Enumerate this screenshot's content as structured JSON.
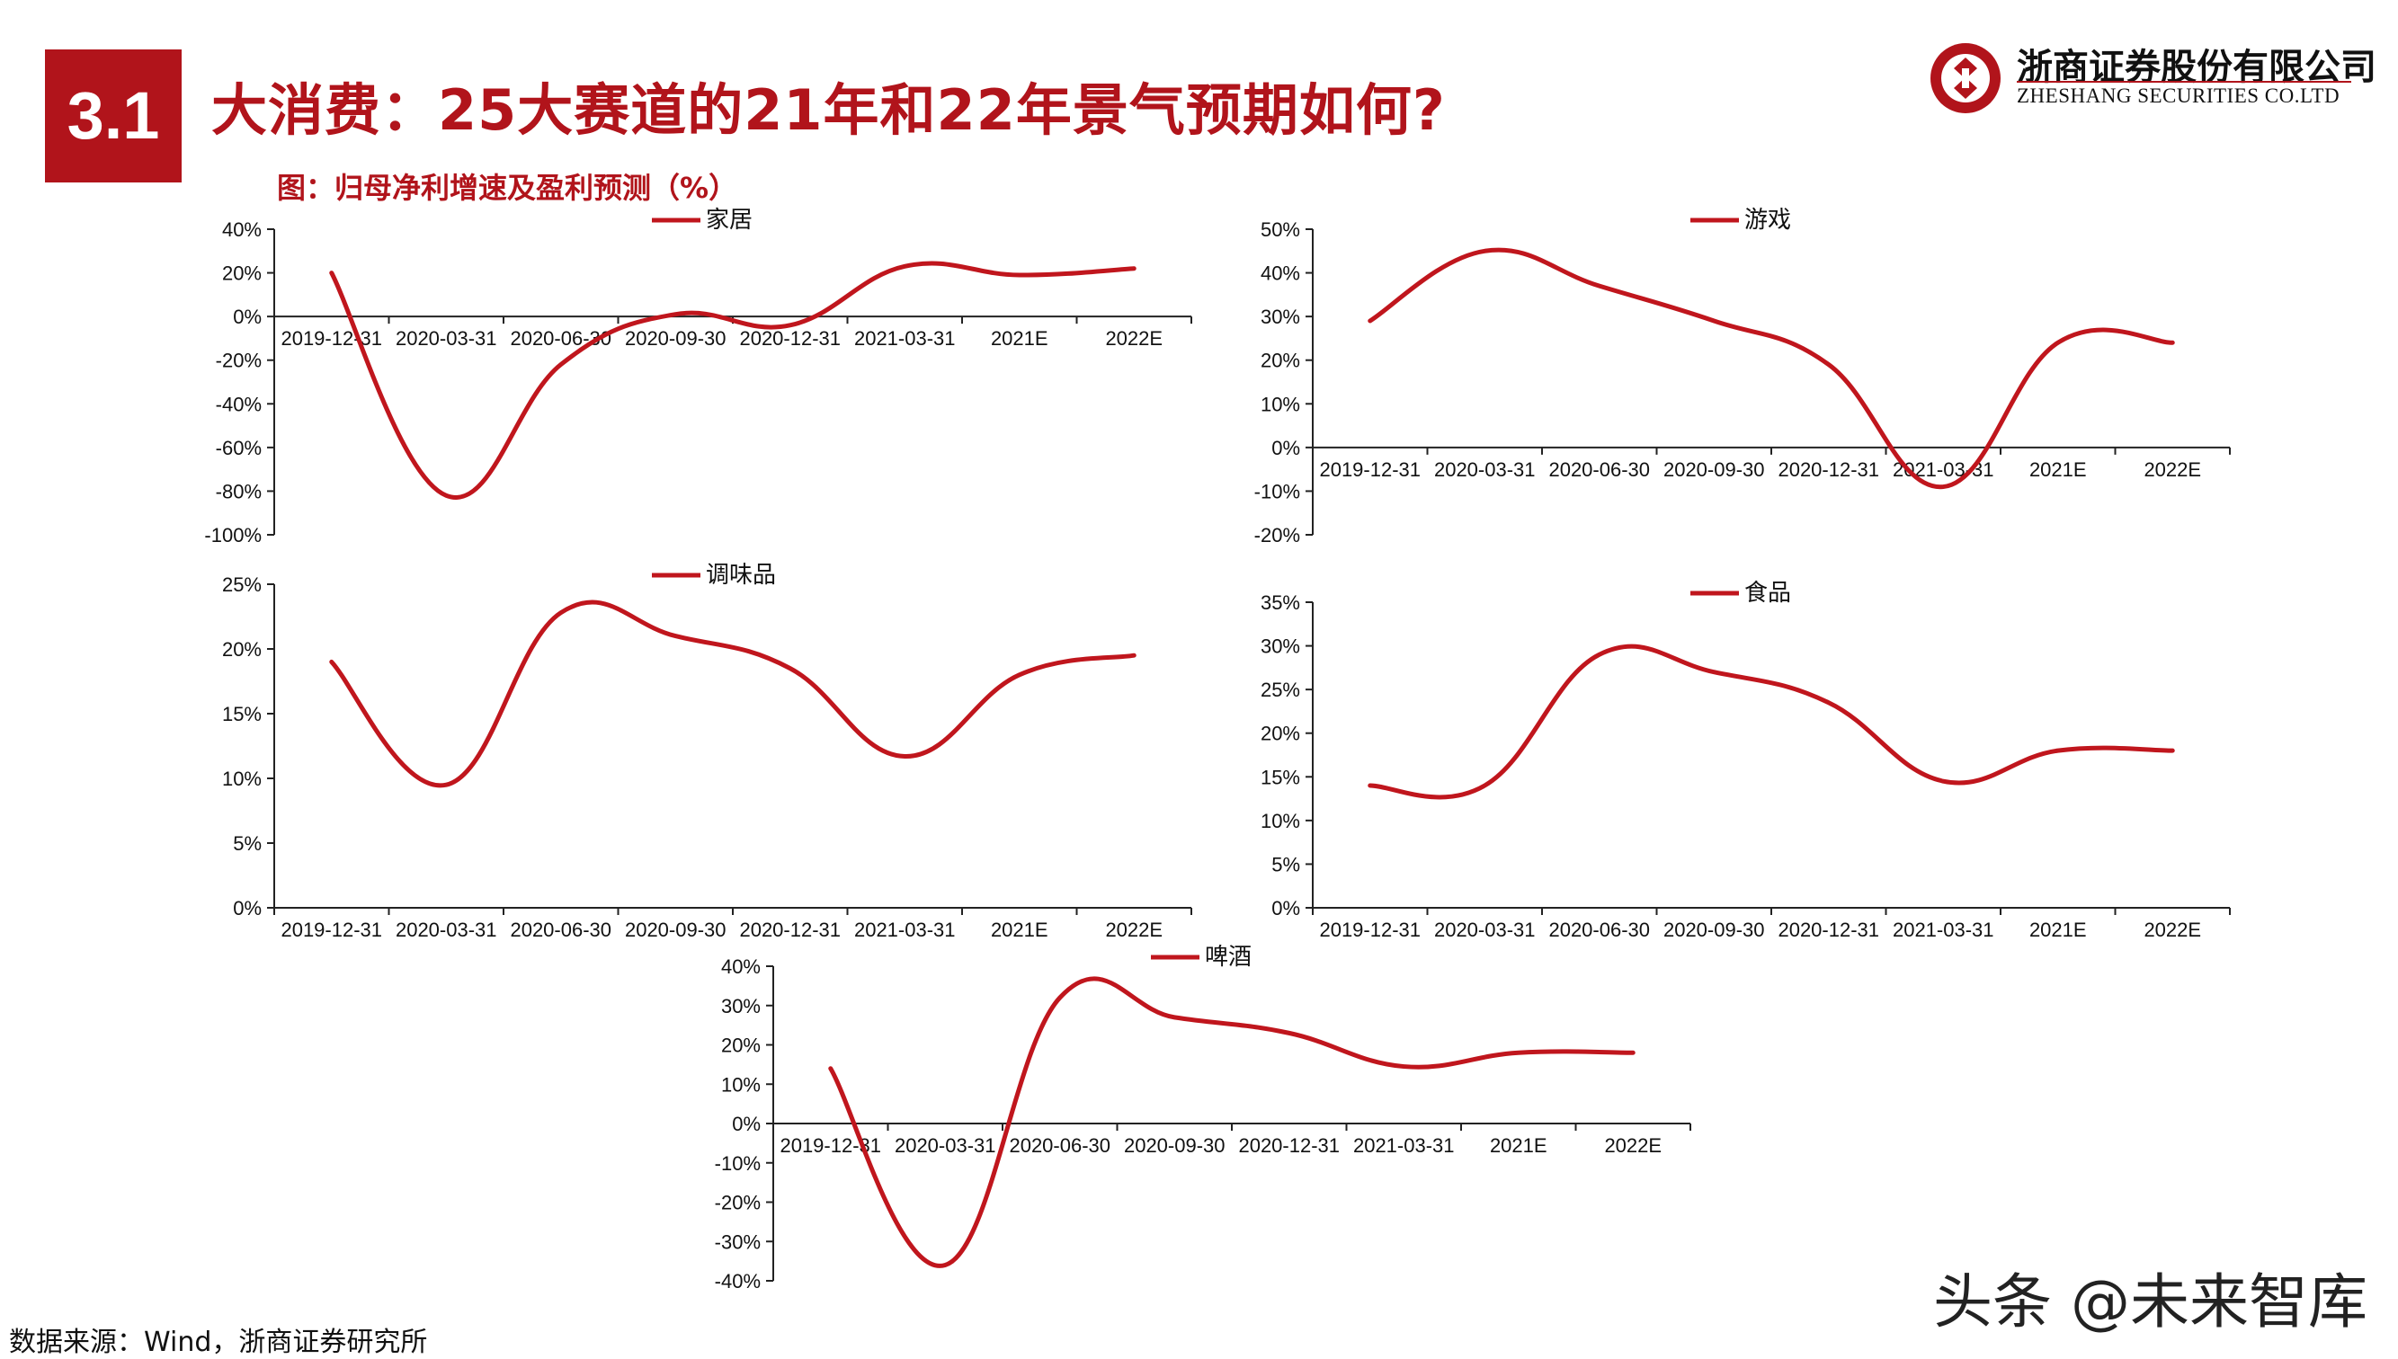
{
  "header": {
    "section_number": "3.1",
    "title": "大消费：25大赛道的21年和22年景气预期如何?",
    "brand_cn": "浙商证券股份有限公司",
    "brand_en": "ZHESHANG SECURITIES CO.LTD"
  },
  "figure_caption": "图：归母净利增速及盈利预测（%）",
  "source": "数据来源：Wind，浙商证券研究所",
  "watermark": "头条 @未来智库",
  "colors": {
    "accent": "#b1141b",
    "line": "#c0161d"
  },
  "chart_data": [
    {
      "type": "line",
      "categories": [
        "2019-12-31",
        "2020-03-31",
        "2020-06-30",
        "2020-09-30",
        "2020-12-31",
        "2021-03-31",
        "2021E",
        "2022E"
      ],
      "series": [
        {
          "name": "家居",
          "values": [
            20,
            -82,
            -22,
            1,
            -4,
            23,
            19,
            22
          ]
        }
      ],
      "ylim": [
        -100,
        40
      ],
      "yticks": [
        40,
        20,
        0,
        -20,
        -40,
        -60,
        -80,
        -100
      ],
      "ytick_labels": [
        "40%",
        "20%",
        "0%",
        "-20%",
        "-40%",
        "-60%",
        "-80%",
        "-100%"
      ],
      "legend": "top-center",
      "grid": false
    },
    {
      "type": "line",
      "categories": [
        "2019-12-31",
        "2020-03-31",
        "2020-06-30",
        "2020-09-30",
        "2020-12-31",
        "2021-03-31",
        "2021E",
        "2022E"
      ],
      "series": [
        {
          "name": "游戏",
          "values": [
            29,
            45,
            37,
            29,
            19,
            -9,
            24,
            24
          ]
        }
      ],
      "ylim": [
        -20,
        50
      ],
      "yticks": [
        50,
        40,
        30,
        20,
        10,
        0,
        -10,
        -20
      ],
      "ytick_labels": [
        "50%",
        "40%",
        "30%",
        "20%",
        "10%",
        "0%",
        "-10%",
        "-20%"
      ],
      "legend": "top-center",
      "grid": false
    },
    {
      "type": "line",
      "categories": [
        "2019-12-31",
        "2020-03-31",
        "2020-06-30",
        "2020-09-30",
        "2020-12-31",
        "2021-03-31",
        "2021E",
        "2022E"
      ],
      "series": [
        {
          "name": "调味品",
          "values": [
            19,
            9.5,
            22.8,
            21,
            18.5,
            11.7,
            18,
            19.5
          ]
        }
      ],
      "ylim": [
        0,
        25
      ],
      "yticks": [
        25,
        20,
        15,
        10,
        5,
        0
      ],
      "ytick_labels": [
        "25%",
        "20%",
        "15%",
        "10%",
        "5%",
        "0%"
      ],
      "legend": "top-center",
      "grid": false
    },
    {
      "type": "line",
      "categories": [
        "2019-12-31",
        "2020-03-31",
        "2020-06-30",
        "2020-09-30",
        "2020-12-31",
        "2021-03-31",
        "2021E",
        "2022E"
      ],
      "series": [
        {
          "name": "食品",
          "values": [
            14,
            14,
            29,
            27,
            23.5,
            14.5,
            18,
            18
          ]
        }
      ],
      "ylim": [
        0,
        35
      ],
      "yticks": [
        35,
        30,
        25,
        20,
        15,
        10,
        5,
        0
      ],
      "ytick_labels": [
        "35%",
        "30%",
        "25%",
        "20%",
        "15%",
        "10%",
        "5%",
        "0%"
      ],
      "legend": "top-center",
      "grid": false
    },
    {
      "type": "line",
      "categories": [
        "2019-12-31",
        "2020-03-31",
        "2020-06-30",
        "2020-09-30",
        "2020-12-31",
        "2021-03-31",
        "2021E",
        "2022E"
      ],
      "series": [
        {
          "name": "啤酒",
          "values": [
            14,
            -36,
            32,
            27,
            23,
            14.5,
            18,
            18
          ]
        }
      ],
      "ylim": [
        -40,
        40
      ],
      "yticks": [
        40,
        30,
        20,
        10,
        0,
        -10,
        -20,
        -30,
        -40
      ],
      "ytick_labels": [
        "40%",
        "30%",
        "20%",
        "10%",
        "0%",
        "-10%",
        "-20%",
        "-30%",
        "-40%"
      ],
      "legend": "top-center",
      "grid": false
    }
  ]
}
